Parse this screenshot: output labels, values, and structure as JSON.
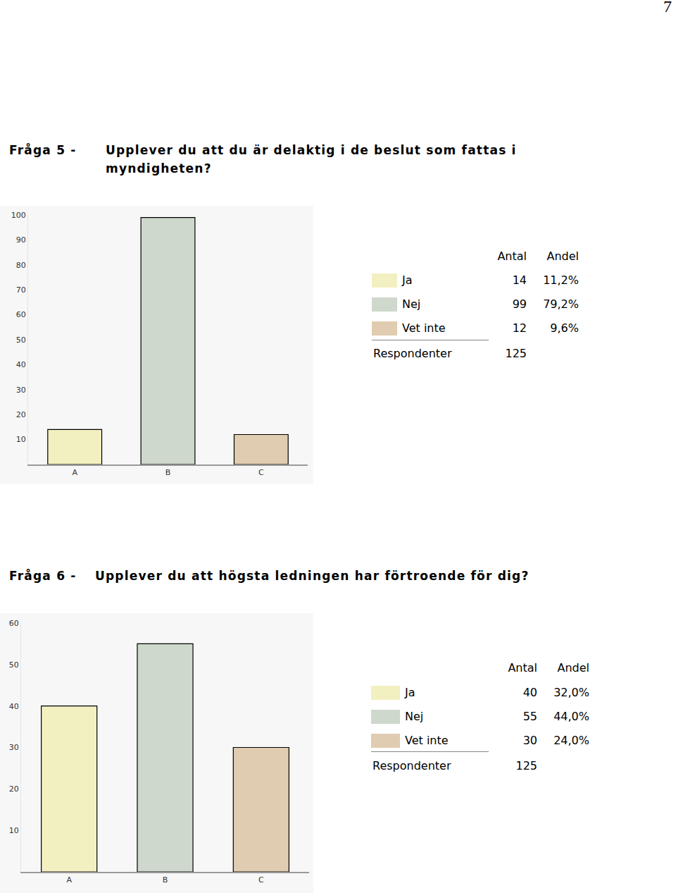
{
  "page_number": 7,
  "sections": [
    {
      "label": "Fråga 5 -",
      "question": "Upplever du att du är delaktig i de beslut som fattas i myndigheten?",
      "table": {
        "columns": [
          "Antal",
          "Andel"
        ],
        "rows": [
          {
            "label": "Ja",
            "count": 14,
            "share": "11,2%"
          },
          {
            "label": "Nej",
            "count": 99,
            "share": "79,2%"
          },
          {
            "label": "Vet inte",
            "count": 12,
            "share": "9,6%"
          }
        ],
        "total_label": "Respondenter",
        "total": 125
      }
    },
    {
      "label": "Fråga 6 -",
      "question": "Upplever du att högsta ledningen har förtroende för dig?",
      "table": {
        "columns": [
          "Antal",
          "Andel"
        ],
        "rows": [
          {
            "label": "Ja",
            "count": 40,
            "share": "32,0%"
          },
          {
            "label": "Nej",
            "count": 55,
            "share": "44,0%"
          },
          {
            "label": "Vet inte",
            "count": 30,
            "share": "24,0%"
          }
        ],
        "total_label": "Respondenter",
        "total": 125
      }
    }
  ],
  "chart_data": [
    {
      "type": "bar",
      "categories": [
        "A",
        "B",
        "C"
      ],
      "values": [
        14,
        99,
        12
      ],
      "colors": [
        "#f2f0c0",
        "#cfd8cc",
        "#e0ccb0"
      ],
      "ylim": [
        0,
        100
      ],
      "yticks": [
        10,
        20,
        30,
        40,
        50,
        60,
        70,
        80,
        90,
        100
      ],
      "grid": false
    },
    {
      "type": "bar",
      "categories": [
        "A",
        "B",
        "C"
      ],
      "values": [
        40,
        55,
        30
      ],
      "colors": [
        "#f2f0c0",
        "#cfd8cc",
        "#e0ccb0"
      ],
      "ylim": [
        0,
        60
      ],
      "yticks": [
        10,
        20,
        30,
        40,
        50,
        60
      ],
      "grid": false
    }
  ]
}
